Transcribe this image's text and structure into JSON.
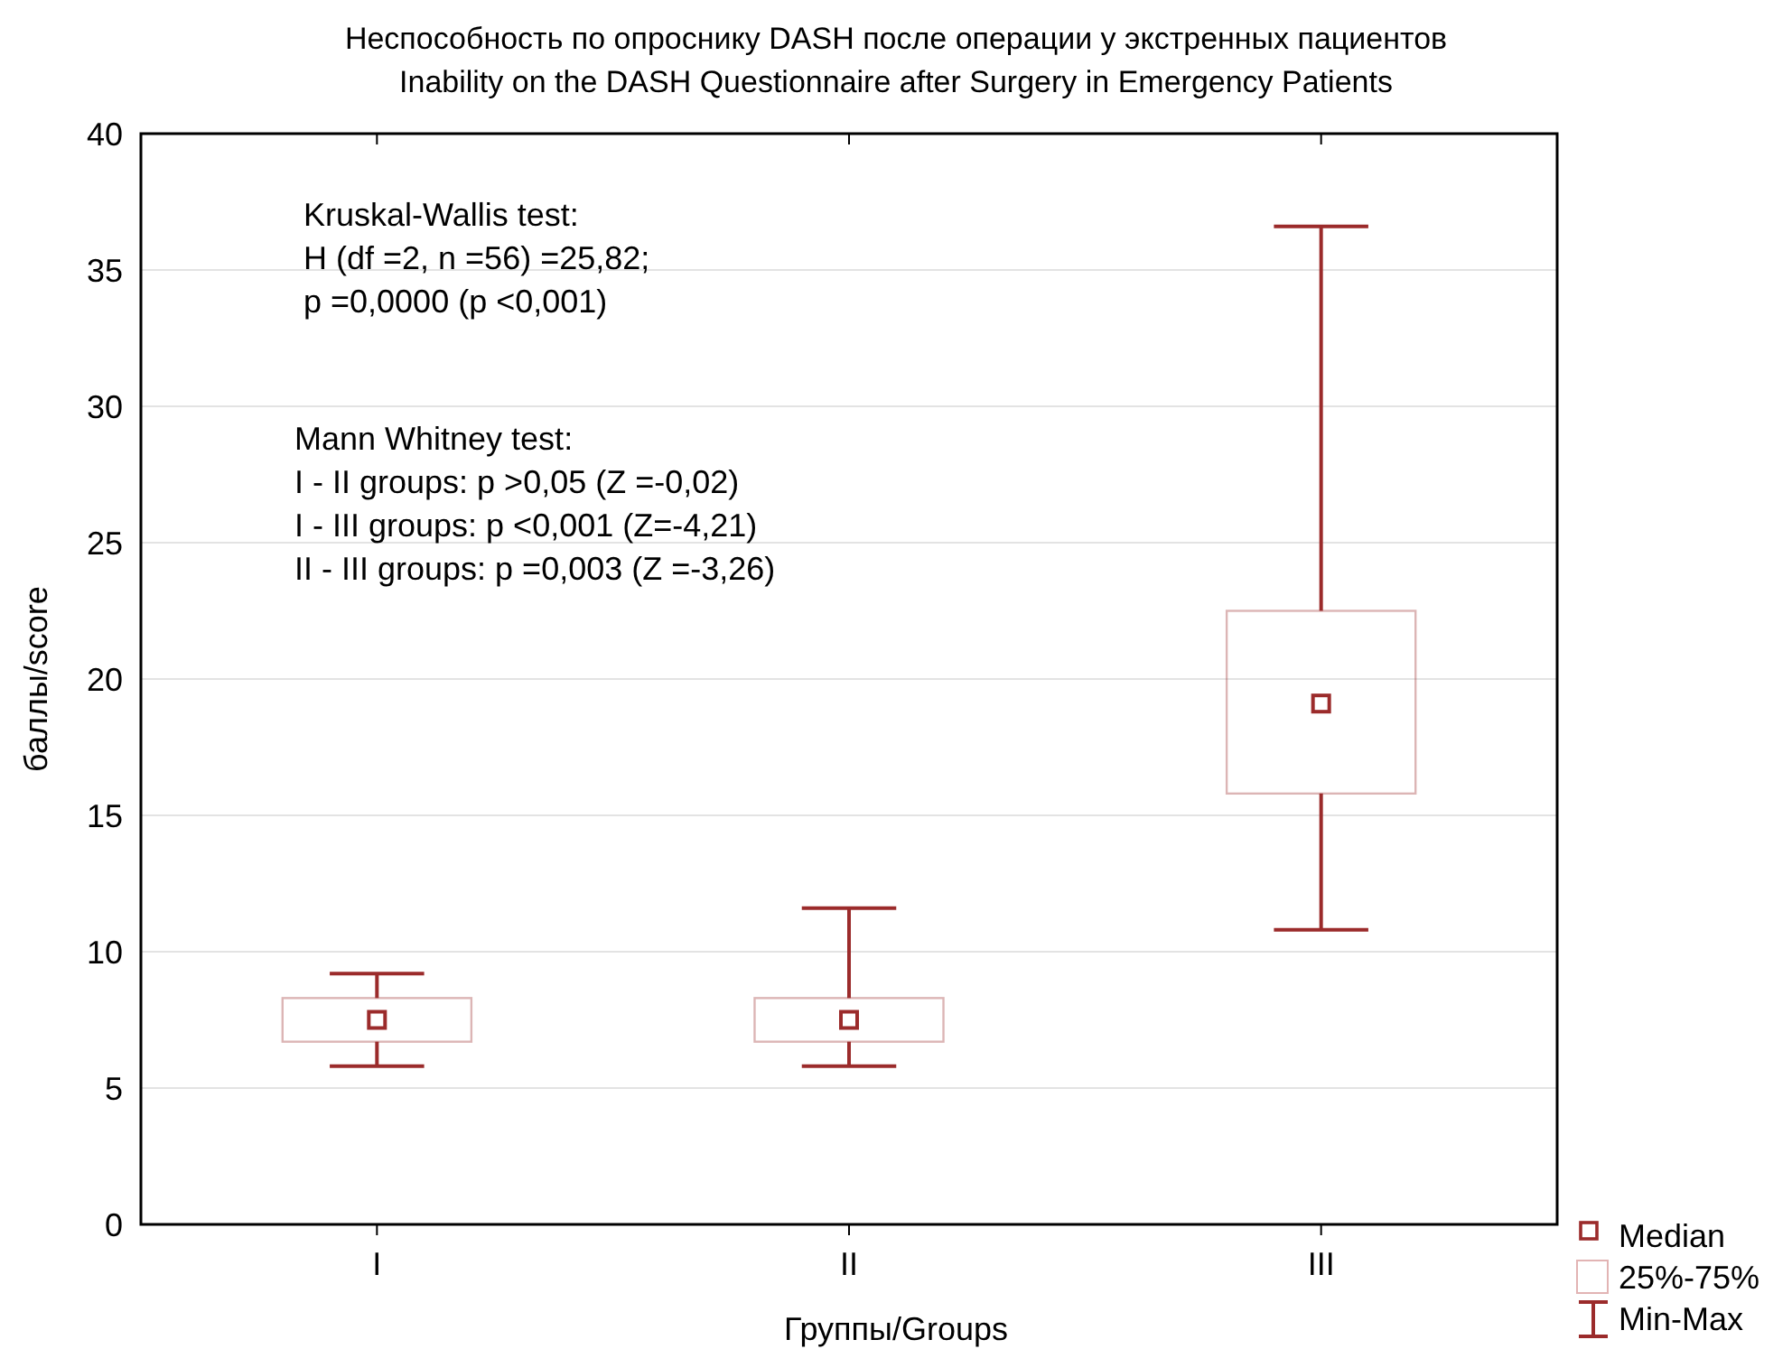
{
  "chart_data": {
    "type": "box",
    "title": "Неспособность по опроснику DASH после операции у экстренных пациентов",
    "subtitle": "Inability on the DASH Questionnaire after Surgery in Emergency Patients",
    "xlabel": "Группы/Groups",
    "ylabel": "баллы/score",
    "categories": [
      "I",
      "II",
      "III"
    ],
    "series": [
      {
        "color": "#9b2b2b",
        "boxes": [
          {
            "low": 5.8,
            "q1": 6.7,
            "median": 7.5,
            "q3": 8.3,
            "high": 9.2
          },
          {
            "low": 5.8,
            "q1": 6.7,
            "median": 7.5,
            "q3": 8.3,
            "high": 11.6
          },
          {
            "low": 10.8,
            "q1": 15.8,
            "median": 19.1,
            "q3": 22.5,
            "high": 36.6
          }
        ]
      }
    ],
    "ylim": [
      0,
      40
    ],
    "yticks": [
      0,
      5,
      10,
      15,
      20,
      25,
      30,
      35,
      40
    ],
    "grid": "y",
    "annotations": [
      "Kruskal-Wallis test:\nH (df =2, n =56) =25,82;\np =0,0000 (p <0,001)",
      "Mann Whitney test:\nI - II groups: p >0,05 (Z =-0,02)\nI - III groups: p <0,001 (Z=-4,21)\nII - III groups: p =0,003 (Z =-3,26)",
      "Median",
      "25%-75%",
      "Min-Max"
    ]
  }
}
